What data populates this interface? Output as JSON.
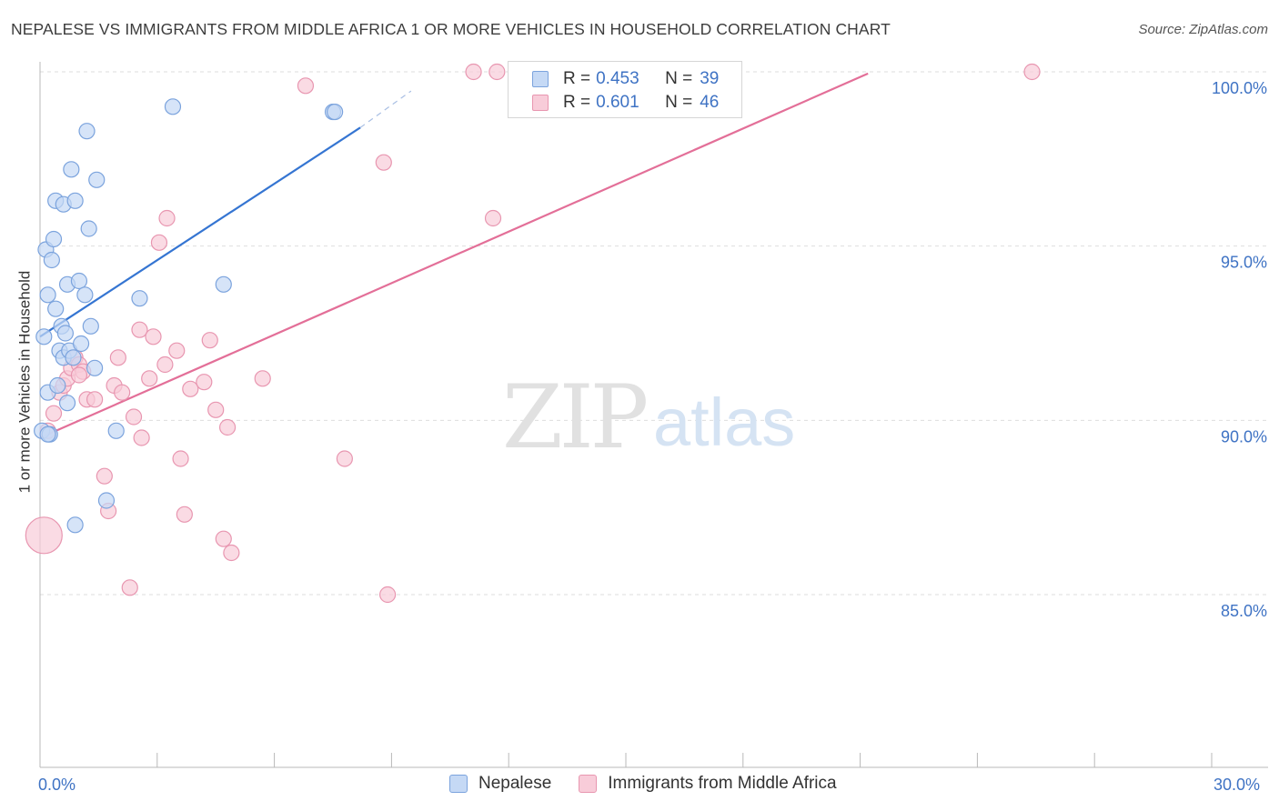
{
  "title": "NEPALESE VS IMMIGRANTS FROM MIDDLE AFRICA 1 OR MORE VEHICLES IN HOUSEHOLD CORRELATION CHART",
  "source": "Source: ZipAtlas.com",
  "watermark": {
    "zip": "ZIP",
    "atlas": "atlas"
  },
  "legend": {
    "series1": {
      "r_label": "R =",
      "r_value": "0.453",
      "n_label": "N =",
      "n_value": "39"
    },
    "series2": {
      "r_label": "R =",
      "r_value": "0.601",
      "n_label": "N =",
      "n_value": "46"
    }
  },
  "colors": {
    "blue_fill": "#c5d9f5",
    "blue_stroke": "#7ba3dd",
    "blue_line": "#3575d2",
    "pink_fill": "#f8ccd9",
    "pink_stroke": "#e896b0",
    "pink_line": "#e36f98",
    "tick_text": "#3f73c4",
    "grid": "#dedede"
  },
  "chart_data": {
    "type": "scatter",
    "title": "NEPALESE VS IMMIGRANTS FROM MIDDLE AFRICA 1 OR MORE VEHICLES IN HOUSEHOLD CORRELATION CHART",
    "xlabel": "",
    "ylabel": "1 or more Vehicles in Household",
    "xlim": [
      0,
      30
    ],
    "ylim": [
      80,
      100.5
    ],
    "x_tick_labels": [
      "0.0%",
      "30.0%"
    ],
    "y_ticks": [
      85,
      90,
      95,
      100
    ],
    "y_tick_labels": [
      "85.0%",
      "90.0%",
      "95.0%",
      "100.0%"
    ],
    "legend_position": "top-center",
    "series": [
      {
        "name": "Nepalese",
        "r": 0.453,
        "n": 39,
        "trend": {
          "x": [
            0.0,
            8.2
          ],
          "y": [
            92.4,
            98.4
          ]
        },
        "trend_dashed": {
          "x": [
            8.2,
            9.5
          ],
          "y": [
            98.4,
            99.45
          ]
        },
        "points": [
          [
            0.05,
            89.7
          ],
          [
            0.1,
            92.4
          ],
          [
            0.15,
            94.9
          ],
          [
            0.2,
            93.6
          ],
          [
            0.2,
            90.8
          ],
          [
            0.25,
            89.6
          ],
          [
            0.3,
            94.6
          ],
          [
            0.35,
            95.2
          ],
          [
            0.4,
            93.2
          ],
          [
            0.4,
            96.3
          ],
          [
            0.45,
            91.0
          ],
          [
            0.5,
            92.0
          ],
          [
            0.55,
            92.7
          ],
          [
            0.6,
            91.8
          ],
          [
            0.6,
            96.2
          ],
          [
            0.65,
            92.5
          ],
          [
            0.7,
            90.5
          ],
          [
            0.7,
            93.9
          ],
          [
            0.75,
            92.0
          ],
          [
            0.8,
            97.2
          ],
          [
            0.85,
            91.8
          ],
          [
            0.9,
            96.3
          ],
          [
            0.9,
            87.0
          ],
          [
            1.0,
            94.0
          ],
          [
            1.05,
            92.2
          ],
          [
            1.15,
            93.6
          ],
          [
            1.2,
            98.3
          ],
          [
            1.25,
            95.5
          ],
          [
            1.3,
            92.7
          ],
          [
            1.4,
            91.5
          ],
          [
            1.45,
            96.9
          ],
          [
            1.7,
            87.7
          ],
          [
            1.95,
            89.7
          ],
          [
            2.55,
            93.5
          ],
          [
            3.4,
            99.0
          ],
          [
            4.7,
            93.9
          ],
          [
            7.5,
            98.85
          ],
          [
            7.55,
            98.85
          ],
          [
            0.2,
            89.6
          ]
        ]
      },
      {
        "name": "Immigrants from Middle Africa",
        "r": 0.601,
        "n": 46,
        "trend": {
          "x": [
            0.0,
            21.2
          ],
          "y": [
            89.5,
            99.95
          ]
        },
        "points": [
          [
            0.1,
            86.7
          ],
          [
            0.2,
            89.7
          ],
          [
            0.35,
            90.2
          ],
          [
            0.5,
            90.8
          ],
          [
            0.6,
            91.0
          ],
          [
            0.7,
            91.2
          ],
          [
            0.8,
            91.5
          ],
          [
            0.9,
            91.8
          ],
          [
            1.0,
            91.6
          ],
          [
            1.1,
            91.4
          ],
          [
            1.2,
            90.6
          ],
          [
            1.4,
            90.6
          ],
          [
            1.65,
            88.4
          ],
          [
            1.75,
            87.4
          ],
          [
            1.9,
            91.0
          ],
          [
            2.0,
            91.8
          ],
          [
            2.1,
            90.8
          ],
          [
            2.3,
            85.2
          ],
          [
            2.4,
            90.1
          ],
          [
            2.55,
            92.6
          ],
          [
            2.6,
            89.5
          ],
          [
            2.8,
            91.2
          ],
          [
            2.9,
            92.4
          ],
          [
            3.05,
            95.1
          ],
          [
            3.2,
            91.6
          ],
          [
            3.25,
            95.8
          ],
          [
            3.5,
            92.0
          ],
          [
            3.6,
            88.9
          ],
          [
            3.7,
            87.3
          ],
          [
            3.85,
            90.9
          ],
          [
            4.2,
            91.1
          ],
          [
            4.35,
            92.3
          ],
          [
            4.5,
            90.3
          ],
          [
            4.7,
            86.6
          ],
          [
            4.8,
            89.8
          ],
          [
            4.9,
            86.2
          ],
          [
            5.7,
            91.2
          ],
          [
            7.8,
            88.9
          ],
          [
            6.8,
            99.6
          ],
          [
            8.8,
            97.4
          ],
          [
            8.9,
            85.0
          ],
          [
            11.1,
            100.0
          ],
          [
            11.6,
            95.8
          ],
          [
            11.7,
            100.0
          ],
          [
            25.4,
            100.0
          ],
          [
            1.0,
            91.3
          ]
        ]
      }
    ]
  }
}
